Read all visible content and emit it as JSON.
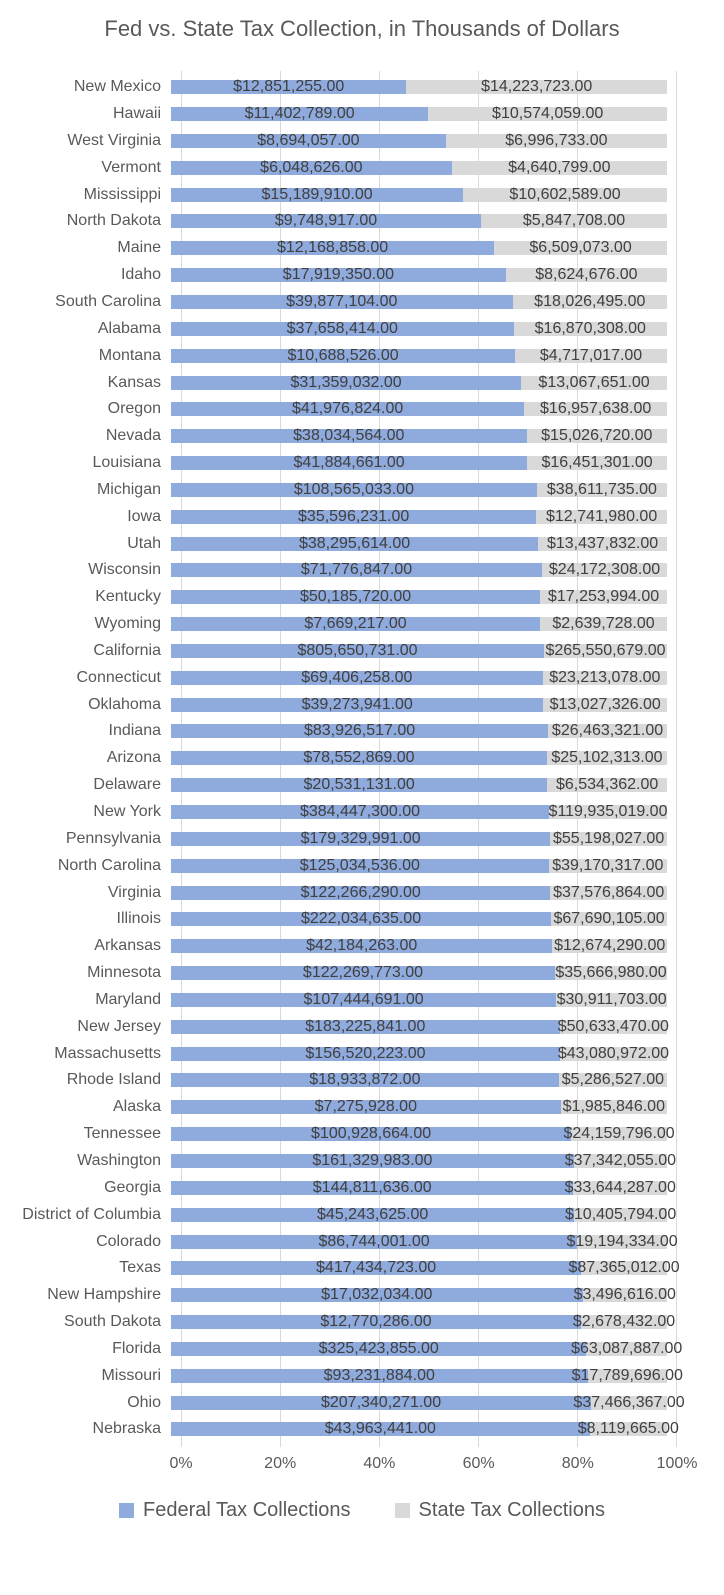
{
  "colors": {
    "federal_bar": "#8FAADC",
    "state_bar": "#D9D9D9",
    "title_text": "#595959",
    "axis_text": "#595959",
    "data_label_text": "#404040",
    "gridline": "#D9D9D9"
  },
  "chart_data": {
    "type": "bar",
    "subtype": "100-percent-stacked",
    "orientation": "horizontal",
    "title": "Fed vs. State Tax Collection, in Thousands of Dollars",
    "xlabel": "",
    "ylabel": "",
    "xlim_percent": [
      0,
      100
    ],
    "grid": true,
    "legend_position": "bottom",
    "value_format": "$#,##0.00",
    "x_axis_ticks": [
      "0%",
      "20%",
      "40%",
      "60%",
      "80%",
      "100%"
    ],
    "categories": [
      "New Mexico",
      "Hawaii",
      "West Virginia",
      "Vermont",
      "Mississippi",
      "North Dakota",
      "Maine",
      "Idaho",
      "South Carolina",
      "Alabama",
      "Montana",
      "Kansas",
      "Oregon",
      "Nevada",
      "Louisiana",
      "Michigan",
      "Iowa",
      "Utah",
      "Wisconsin",
      "Kentucky",
      "Wyoming",
      "California",
      "Connecticut",
      "Oklahoma",
      "Indiana",
      "Arizona",
      "Delaware",
      "New York",
      "Pennsylvania",
      "North Carolina",
      "Virginia",
      "Illinois",
      "Arkansas",
      "Minnesota",
      "Maryland",
      "New Jersey",
      "Massachusetts",
      "Rhode Island",
      "Alaska",
      "Tennessee",
      "Washington",
      "Georgia",
      "District of Columbia",
      "Colorado",
      "Texas",
      "New Hampshire",
      "South Dakota",
      "Florida",
      "Missouri",
      "Ohio",
      "Nebraska"
    ],
    "series": [
      {
        "name": "Federal Tax Collections",
        "color": "#8FAADC",
        "values": [
          12851255,
          11402789,
          8694057,
          6048626,
          15189910,
          9748917,
          12168858,
          17919350,
          39877104,
          37658414,
          10688526,
          31359032,
          41976824,
          38034564,
          41884661,
          108565033,
          35596231,
          38295614,
          71776847,
          50185720,
          7669217,
          805650731,
          69406258,
          39273941,
          83926517,
          78552869,
          20531131,
          384447300,
          179329991,
          125034536,
          122266290,
          222034635,
          42184263,
          122269773,
          107444691,
          183225841,
          156520223,
          18933872,
          7275928,
          100928664,
          161329983,
          144811636,
          45243625,
          86744001,
          417434723,
          17032034,
          12770286,
          325423855,
          93231884,
          207340271,
          43963441
        ]
      },
      {
        "name": "State Tax Collections",
        "color": "#D9D9D9",
        "values": [
          14223723,
          10574059,
          6996733,
          4640799,
          10602589,
          5847708,
          6509073,
          8624676,
          18026495,
          16870308,
          4717017,
          13067651,
          16957638,
          15026720,
          16451301,
          38611735,
          12741980,
          13437832,
          24172308,
          17253994,
          2639728,
          265550679,
          23213078,
          13027326,
          26463321,
          25102313,
          6534362,
          119935019,
          55198027,
          39170317,
          37576864,
          67690105,
          12674290,
          35666980,
          30911703,
          50633470,
          43080972,
          5286527,
          1985846,
          24159796,
          37342055,
          33644287,
          10405794,
          19194334,
          87365012,
          3496616,
          2678432,
          63087887,
          17789696,
          37466367,
          8119665
        ]
      }
    ]
  }
}
